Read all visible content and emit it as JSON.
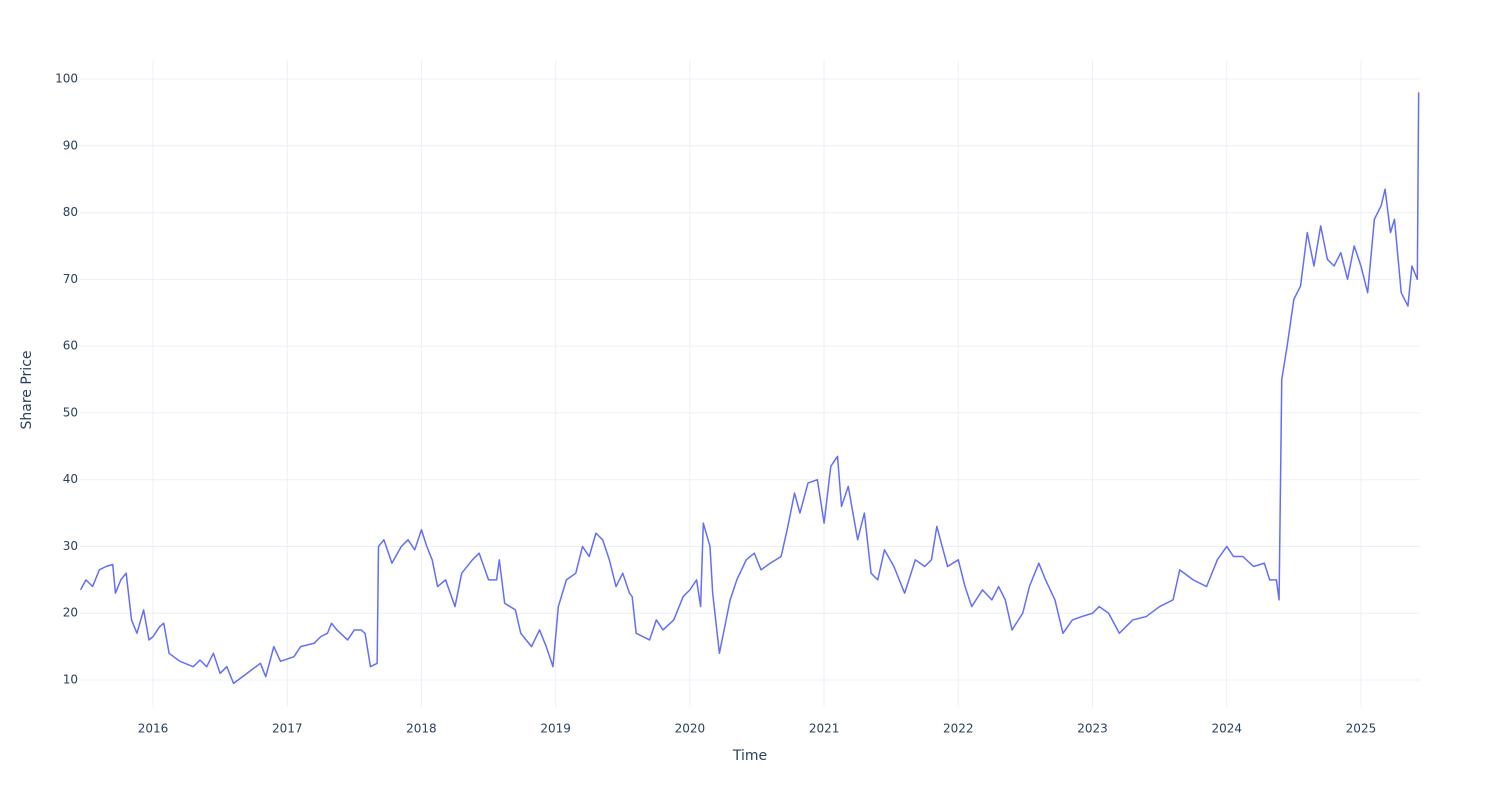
{
  "chart_data": {
    "type": "line",
    "x_label": "Time",
    "y_label": "Share Price",
    "color": "#636efa",
    "grid": true,
    "xlim": [
      2015.456,
      2025.44
    ],
    "ylim": [
      5.96,
      102.85
    ],
    "xticks": [
      2016,
      2017,
      2018,
      2019,
      2020,
      2021,
      2022,
      2023,
      2024,
      2025
    ],
    "yticks": [
      10,
      20,
      30,
      40,
      50,
      60,
      70,
      80,
      90,
      100
    ],
    "x": [
      2015.46,
      2015.5,
      2015.55,
      2015.6,
      2015.65,
      2015.7,
      2015.72,
      2015.76,
      2015.8,
      2015.84,
      2015.88,
      2015.93,
      2015.97,
      2016.0,
      2016.05,
      2016.08,
      2016.12,
      2016.2,
      2016.3,
      2016.35,
      2016.4,
      2016.45,
      2016.5,
      2016.55,
      2016.6,
      2016.7,
      2016.8,
      2016.84,
      2016.9,
      2016.95,
      2017.05,
      2017.1,
      2017.2,
      2017.25,
      2017.3,
      2017.33,
      2017.37,
      2017.45,
      2017.5,
      2017.55,
      2017.58,
      2017.62,
      2017.67,
      2017.68,
      2017.72,
      2017.78,
      2017.85,
      2017.9,
      2017.95,
      2018.0,
      2018.04,
      2018.08,
      2018.12,
      2018.18,
      2018.25,
      2018.3,
      2018.38,
      2018.43,
      2018.5,
      2018.56,
      2018.58,
      2018.62,
      2018.7,
      2018.74,
      2018.82,
      2018.88,
      2018.93,
      2018.98,
      2019.02,
      2019.08,
      2019.15,
      2019.2,
      2019.25,
      2019.3,
      2019.35,
      2019.4,
      2019.45,
      2019.5,
      2019.55,
      2019.57,
      2019.6,
      2019.7,
      2019.75,
      2019.8,
      2019.88,
      2019.95,
      2020.0,
      2020.05,
      2020.08,
      2020.1,
      2020.15,
      2020.17,
      2020.22,
      2020.25,
      2020.3,
      2020.35,
      2020.42,
      2020.48,
      2020.53,
      2020.6,
      2020.68,
      2020.73,
      2020.78,
      2020.82,
      2020.88,
      2020.95,
      2021.0,
      2021.05,
      2021.1,
      2021.13,
      2021.18,
      2021.25,
      2021.3,
      2021.35,
      2021.4,
      2021.45,
      2021.52,
      2021.6,
      2021.68,
      2021.75,
      2021.8,
      2021.84,
      2021.92,
      2022.0,
      2022.05,
      2022.1,
      2022.18,
      2022.25,
      2022.3,
      2022.35,
      2022.4,
      2022.48,
      2022.53,
      2022.6,
      2022.65,
      2022.72,
      2022.78,
      2022.85,
      2022.92,
      2023.0,
      2023.05,
      2023.12,
      2023.2,
      2023.3,
      2023.4,
      2023.5,
      2023.6,
      2023.65,
      2023.75,
      2023.85,
      2023.93,
      2024.0,
      2024.05,
      2024.12,
      2024.2,
      2024.28,
      2024.32,
      2024.37,
      2024.39,
      2024.41,
      2024.45,
      2024.5,
      2024.55,
      2024.6,
      2024.65,
      2024.7,
      2024.75,
      2024.8,
      2024.85,
      2024.9,
      2024.95,
      2025.0,
      2025.05,
      2025.1,
      2025.15,
      2025.18,
      2025.22,
      2025.25,
      2025.3,
      2025.35,
      2025.38,
      2025.42,
      2025.43
    ],
    "values": [
      23.5,
      25,
      24,
      26.5,
      27,
      27.3,
      23,
      25,
      26,
      19,
      17,
      20.5,
      16,
      16.5,
      18,
      18.5,
      14,
      12.8,
      12,
      13,
      12,
      14,
      11,
      12,
      9.5,
      11,
      12.5,
      10.5,
      15,
      12.8,
      13.5,
      15,
      15.5,
      16.5,
      17,
      18.5,
      17.5,
      16,
      17.5,
      17.5,
      17,
      12,
      12.5,
      30,
      31,
      27.5,
      30,
      31,
      29.5,
      32.5,
      30,
      28,
      24,
      25,
      21,
      26,
      28,
      29,
      25,
      25,
      28,
      21.5,
      20.5,
      17,
      15,
      17.5,
      15,
      12,
      21,
      25,
      26,
      30,
      28.5,
      32,
      31,
      28,
      24,
      26,
      23,
      22.5,
      17,
      16,
      19,
      17.5,
      19,
      22.5,
      23.5,
      25,
      21,
      33.5,
      30,
      23,
      14,
      17,
      22,
      25,
      28,
      29,
      26.5,
      27.5,
      28.5,
      33,
      38,
      35,
      39.5,
      40,
      33.5,
      42,
      43.5,
      36,
      39,
      31,
      35,
      26,
      25,
      29.5,
      27,
      23,
      28,
      27,
      28,
      33,
      27,
      28,
      24,
      21,
      23.5,
      22,
      24,
      22,
      17.5,
      20,
      24,
      27.5,
      25,
      22,
      17,
      19,
      19.5,
      20,
      21,
      20,
      17,
      19,
      19.5,
      21,
      22,
      26.5,
      25,
      24,
      28,
      30,
      28.5,
      28.5,
      27,
      27.5,
      25,
      25,
      22,
      55,
      60,
      67,
      69,
      77,
      72,
      78,
      73,
      72,
      74,
      70,
      75,
      72,
      68,
      79,
      81,
      83.5,
      77,
      79,
      68,
      66,
      72,
      70,
      98
    ]
  }
}
